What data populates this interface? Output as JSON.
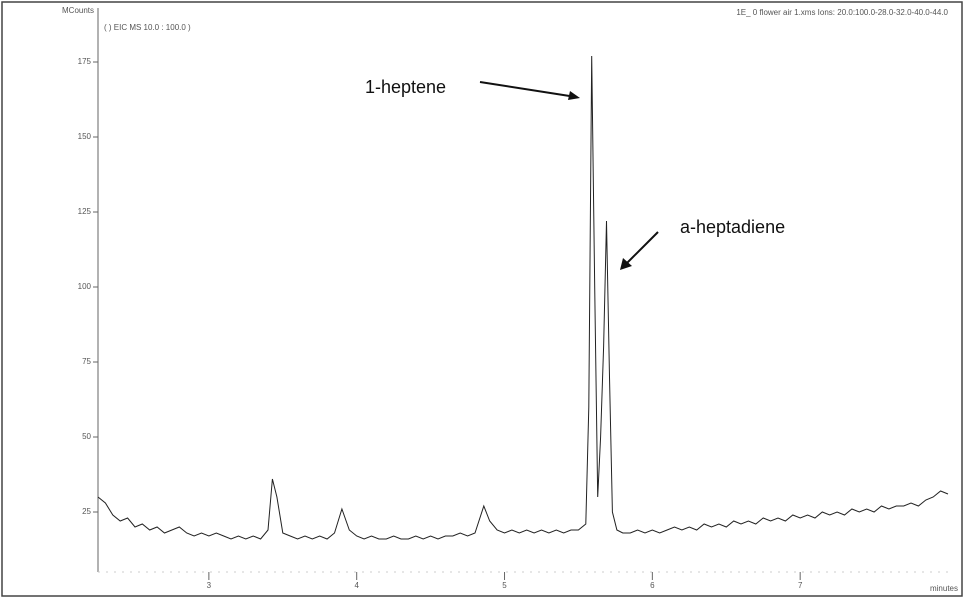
{
  "chart_data": {
    "type": "line",
    "y_axis_label": "MCounts",
    "x_axis_label": "minutes",
    "subtitle": "( ) EIC MS 10.0 : 100.0 )",
    "title": "1E_ 0 flower air 1.xms Ions: 20.0:100.0-28.0-32.0-40.0-44.0",
    "annotations": [
      "1-heptene",
      "a-heptadiene"
    ],
    "x": [
      2.25,
      2.3,
      2.35,
      2.4,
      2.45,
      2.5,
      2.55,
      2.6,
      2.65,
      2.7,
      2.75,
      2.8,
      2.85,
      2.9,
      2.95,
      3.0,
      3.05,
      3.1,
      3.15,
      3.2,
      3.25,
      3.3,
      3.35,
      3.4,
      3.43,
      3.46,
      3.5,
      3.55,
      3.6,
      3.65,
      3.7,
      3.75,
      3.8,
      3.85,
      3.9,
      3.95,
      4.0,
      4.05,
      4.1,
      4.15,
      4.2,
      4.25,
      4.3,
      4.35,
      4.4,
      4.45,
      4.5,
      4.55,
      4.6,
      4.65,
      4.7,
      4.75,
      4.8,
      4.86,
      4.9,
      4.95,
      5.0,
      5.05,
      5.1,
      5.15,
      5.2,
      5.25,
      5.3,
      5.35,
      5.4,
      5.45,
      5.5,
      5.55,
      5.57,
      5.59,
      5.61,
      5.63,
      5.65,
      5.67,
      5.69,
      5.71,
      5.73,
      5.76,
      5.8,
      5.85,
      5.9,
      5.95,
      6.0,
      6.05,
      6.1,
      6.15,
      6.2,
      6.25,
      6.3,
      6.35,
      6.4,
      6.45,
      6.5,
      6.55,
      6.6,
      6.65,
      6.7,
      6.75,
      6.8,
      6.85,
      6.9,
      6.95,
      7.0,
      7.05,
      7.1,
      7.15,
      7.2,
      7.25,
      7.3,
      7.35,
      7.4,
      7.45,
      7.5,
      7.55,
      7.6,
      7.65,
      7.7,
      7.75,
      7.8,
      7.85,
      7.9,
      7.95,
      8.0
    ],
    "values": [
      30,
      28,
      24,
      22,
      23,
      20,
      21,
      19,
      20,
      18,
      19,
      20,
      18,
      17,
      18,
      17,
      18,
      17,
      16,
      17,
      16,
      17,
      16,
      19,
      36,
      30,
      18,
      17,
      16,
      17,
      16,
      17,
      16,
      18,
      26,
      19,
      17,
      16,
      17,
      16,
      16,
      17,
      16,
      16,
      17,
      16,
      17,
      16,
      17,
      17,
      18,
      17,
      18,
      27,
      22,
      19,
      18,
      19,
      18,
      19,
      18,
      19,
      18,
      19,
      18,
      19,
      19,
      21,
      60,
      177,
      100,
      30,
      50,
      80,
      122,
      70,
      25,
      19,
      18,
      18,
      19,
      18,
      19,
      18,
      19,
      20,
      19,
      20,
      19,
      21,
      20,
      21,
      20,
      22,
      21,
      22,
      21,
      23,
      22,
      23,
      22,
      24,
      23,
      24,
      23,
      25,
      24,
      25,
      24,
      26,
      25,
      26,
      25,
      27,
      26,
      27,
      27,
      28,
      27,
      29,
      30,
      32,
      31
    ],
    "color": "#222222",
    "xlim": [
      2.25,
      8
    ],
    "xticks": [
      3,
      4,
      5,
      6,
      7
    ],
    "ylim": [
      5,
      193
    ],
    "yticks": [
      25,
      50,
      75,
      100,
      125,
      150,
      175
    ]
  }
}
